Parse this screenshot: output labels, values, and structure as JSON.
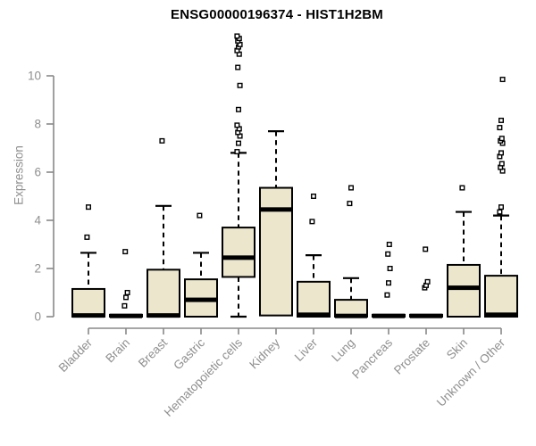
{
  "chart_data": {
    "type": "boxplot",
    "title": "ENSG00000196374 - HIST1H2BM",
    "ylabel": "Expression",
    "xlabel": "",
    "yticks": [
      0,
      2,
      4,
      6,
      8,
      10
    ],
    "ylim": [
      0,
      11.9
    ],
    "grid": false,
    "legend": "none",
    "categories": [
      "Bladder",
      "Brain",
      "Breast",
      "Gastric",
      "Hematopoietic cells",
      "Kidney",
      "Liver",
      "Lung",
      "Pancreas",
      "Prostate",
      "Skin",
      "Unknown / Other"
    ],
    "boxes": [
      {
        "category": "Bladder",
        "whisker_low": 0,
        "q1": 0,
        "median": 0.05,
        "q3": 1.15,
        "whisker_high": 2.65,
        "outliers": [
          3.3,
          4.55
        ]
      },
      {
        "category": "Brain",
        "whisker_low": 0,
        "q1": 0,
        "median": 0.03,
        "q3": 0.08,
        "whisker_high": 0.08,
        "outliers": [
          0.45,
          0.8,
          1.0,
          2.7
        ]
      },
      {
        "category": "Breast",
        "whisker_low": 0,
        "q1": 0,
        "median": 0.05,
        "q3": 1.95,
        "whisker_high": 4.6,
        "outliers": [
          7.3
        ]
      },
      {
        "category": "Gastric",
        "whisker_low": 0,
        "q1": 0,
        "median": 0.7,
        "q3": 1.55,
        "whisker_high": 2.65,
        "outliers": [
          4.2
        ]
      },
      {
        "category": "Hematopoietic cells",
        "whisker_low": 0,
        "q1": 1.65,
        "median": 2.45,
        "q3": 3.7,
        "whisker_high": 6.8,
        "outliers": [
          6.85,
          7.2,
          7.5,
          7.65,
          7.8,
          7.95,
          8.6,
          9.6,
          10.35,
          10.9,
          11.05,
          11.2,
          11.3,
          11.45,
          11.55,
          11.65
        ]
      },
      {
        "category": "Kidney",
        "whisker_low": 0.05,
        "q1": 0.05,
        "median": 4.45,
        "q3": 5.35,
        "whisker_high": 7.7,
        "outliers": []
      },
      {
        "category": "Liver",
        "whisker_low": 0,
        "q1": 0,
        "median": 0.08,
        "q3": 1.45,
        "whisker_high": 2.55,
        "outliers": [
          3.95,
          5.0
        ]
      },
      {
        "category": "Lung",
        "whisker_low": 0,
        "q1": 0,
        "median": 0.03,
        "q3": 0.7,
        "whisker_high": 1.6,
        "outliers": [
          4.7,
          5.35
        ]
      },
      {
        "category": "Pancreas",
        "whisker_low": 0,
        "q1": 0,
        "median": 0.03,
        "q3": 0.08,
        "whisker_high": 0.08,
        "outliers": [
          0.9,
          1.4,
          2.0,
          2.6,
          3.0
        ]
      },
      {
        "category": "Prostate",
        "whisker_low": 0,
        "q1": 0,
        "median": 0.03,
        "q3": 0.08,
        "whisker_high": 0.08,
        "outliers": [
          1.2,
          1.3,
          1.45,
          2.8
        ]
      },
      {
        "category": "Skin",
        "whisker_low": 0,
        "q1": 0,
        "median": 1.2,
        "q3": 2.15,
        "whisker_high": 4.35,
        "outliers": [
          5.35
        ]
      },
      {
        "category": "Unknown / Other",
        "whisker_low": 0,
        "q1": 0,
        "median": 0.08,
        "q3": 1.7,
        "whisker_high": 4.2,
        "outliers": [
          4.35,
          4.55,
          6.05,
          6.2,
          6.35,
          6.65,
          6.8,
          7.2,
          7.3,
          7.4,
          7.85,
          8.15,
          9.85
        ]
      }
    ],
    "colors": {
      "box_fill": "#ECE6CD",
      "box_border": "#000000",
      "median": "#000000",
      "whisker": "#000000",
      "outlier_stroke": "#000000",
      "outlier_fill": "#ffffff",
      "axis_line": "#888888",
      "tick_text": "#8f8f8f",
      "title_text": "#000000"
    }
  }
}
